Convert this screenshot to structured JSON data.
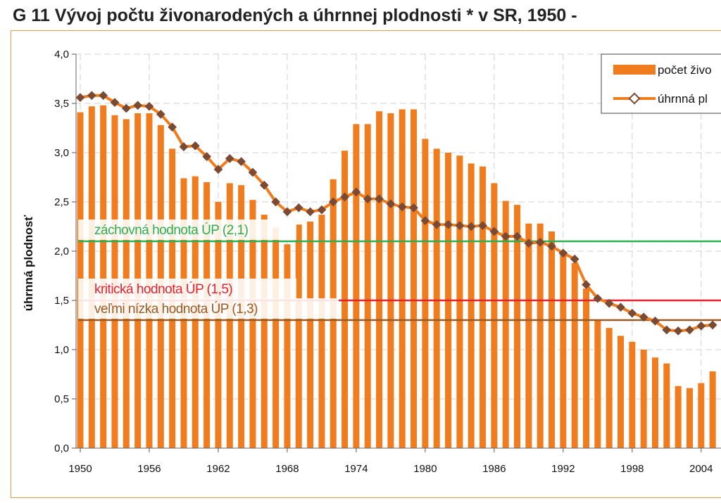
{
  "colors": {
    "bar": "#f07c1e",
    "line": "#f07c1e",
    "marker": "#7a4a32",
    "grid": "#d0d0d0",
    "frame": "#e39b4b",
    "replacement": "#2dae4f",
    "critical": "#e4212e",
    "very_low": "#9a5a24"
  },
  "title": "G 11  Vývoj počtu živonarodených a úhrnnej plodnosti * v SR, 1950 -",
  "chart_data": {
    "type": "bar",
    "title": "G 11  Vývoj počtu živonarodených a úhrnnej plodnosti * v SR, 1950 -",
    "ylabel": "úhrnná plodnosť",
    "xlabel": "",
    "ylim": [
      0,
      4
    ],
    "yticks": [
      "0,0",
      "0,5",
      "1,0",
      "1,5",
      "2,0",
      "2,5",
      "3,0",
      "3,5",
      "4,0"
    ],
    "xtick_labels": [
      "1950",
      "1956",
      "1962",
      "1968",
      "1974",
      "1980",
      "1986",
      "1992",
      "1998",
      "2004"
    ],
    "grid": true,
    "legend_position": "top-right",
    "x": [
      1950,
      1951,
      1952,
      1953,
      1954,
      1955,
      1956,
      1957,
      1958,
      1959,
      1960,
      1961,
      1962,
      1963,
      1964,
      1965,
      1966,
      1967,
      1968,
      1969,
      1970,
      1971,
      1972,
      1973,
      1974,
      1975,
      1976,
      1977,
      1978,
      1979,
      1980,
      1981,
      1982,
      1983,
      1984,
      1985,
      1986,
      1987,
      1988,
      1989,
      1990,
      1991,
      1992,
      1993,
      1994,
      1995,
      1996,
      1997,
      1998,
      1999,
      2000,
      2001,
      2002,
      2003,
      2004,
      2005
    ],
    "series": [
      {
        "name": "počet živo",
        "type": "bar",
        "values": [
          3.41,
          3.47,
          3.48,
          3.38,
          3.34,
          3.4,
          3.4,
          3.28,
          3.04,
          2.74,
          2.76,
          2.7,
          2.5,
          2.69,
          2.67,
          2.52,
          2.37,
          2.24,
          2.07,
          2.27,
          2.3,
          2.37,
          2.73,
          3.02,
          3.29,
          3.29,
          3.42,
          3.4,
          3.44,
          3.44,
          3.14,
          3.04,
          3.0,
          2.97,
          2.89,
          2.86,
          2.69,
          2.51,
          2.47,
          2.28,
          2.28,
          2.2,
          2.0,
          1.88,
          1.62,
          1.3,
          1.22,
          1.14,
          1.08,
          1.0,
          0.92,
          0.86,
          0.63,
          0.61,
          0.66,
          0.78
        ]
      },
      {
        "name": "úhrnná pl",
        "type": "line",
        "values": [
          3.56,
          3.58,
          3.58,
          3.51,
          3.45,
          3.48,
          3.47,
          3.39,
          3.26,
          3.06,
          3.07,
          2.96,
          2.83,
          2.94,
          2.91,
          2.8,
          2.67,
          2.5,
          2.4,
          2.44,
          2.4,
          2.42,
          2.5,
          2.55,
          2.6,
          2.53,
          2.53,
          2.48,
          2.45,
          2.44,
          2.31,
          2.27,
          2.27,
          2.26,
          2.25,
          2.26,
          2.2,
          2.15,
          2.15,
          2.08,
          2.09,
          2.05,
          1.98,
          1.92,
          1.66,
          1.52,
          1.47,
          1.43,
          1.37,
          1.33,
          1.29,
          1.2,
          1.19,
          1.2,
          1.24,
          1.25
        ]
      }
    ],
    "annotations": [
      {
        "label": "záchovná hodnota ÚP (2,1)",
        "y": 2.1,
        "color": "#2dae4f"
      },
      {
        "label": "kritická hodnota ÚP (1,5)",
        "y": 1.5,
        "color": "#e4212e"
      },
      {
        "label": "veľmi nízka hodnota ÚP (1,3)",
        "y": 1.3,
        "color": "#9a5a24"
      }
    ]
  }
}
